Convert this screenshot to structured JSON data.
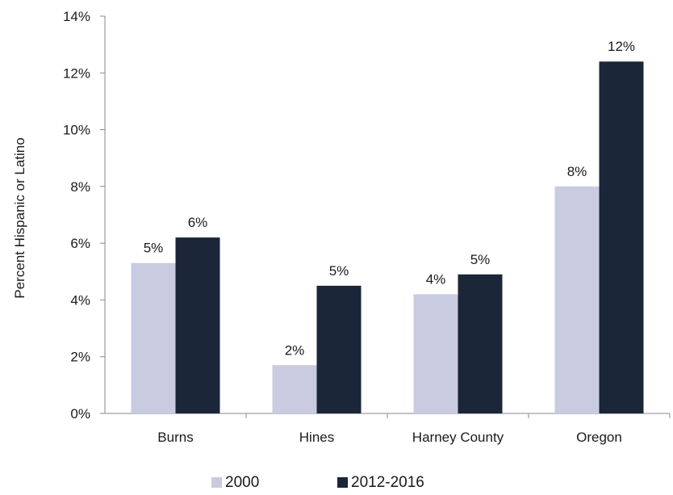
{
  "chart_data": {
    "type": "bar",
    "categories": [
      "Burns",
      "Hines",
      "Harney County",
      "Oregon"
    ],
    "series": [
      {
        "name": "2000",
        "values": [
          5.3,
          1.7,
          4.2,
          8.0
        ],
        "labels": [
          "5%",
          "2%",
          "4%",
          "8%"
        ],
        "color": "#c9cbe0"
      },
      {
        "name": "2012-2016",
        "values": [
          6.2,
          4.5,
          4.9,
          12.4
        ],
        "labels": [
          "6%",
          "5%",
          "5%",
          "12%"
        ],
        "color": "#1b2638"
      }
    ],
    "title": "",
    "xlabel": "",
    "ylabel": "Percent Hispanic or Latino",
    "ylim": [
      0,
      14
    ],
    "yticks": [
      0,
      2,
      4,
      6,
      8,
      10,
      12,
      14
    ],
    "ytick_labels": [
      "0%",
      "2%",
      "4%",
      "6%",
      "8%",
      "10%",
      "12%",
      "14%"
    ],
    "grid": false,
    "legend_position": "bottom"
  }
}
